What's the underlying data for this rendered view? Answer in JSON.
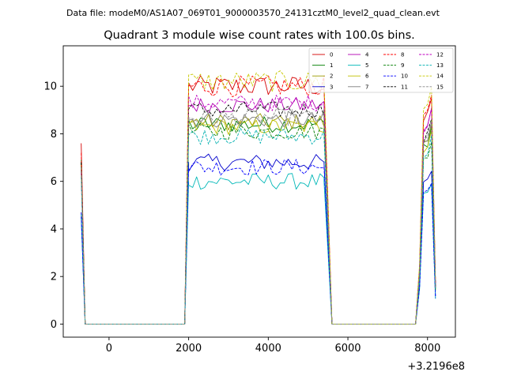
{
  "header_text": "Data file: modeM0/AS1A07_069T01_9000003570_24131cztM0_level2_quad_clean.evt",
  "chart_data": {
    "type": "line",
    "title": "Quadrant 3 module wise count rates with 100.0s bins.",
    "xlabel": "",
    "ylabel": "",
    "x_offset_label": "+3.2196e8",
    "xlim": [
      -1150,
      8700
    ],
    "ylim": [
      -0.55,
      11.7
    ],
    "xticks": [
      0,
      2000,
      4000,
      6000,
      8000
    ],
    "xtick_labels": [
      "0",
      "2000",
      "4000",
      "6000",
      "8000"
    ],
    "yticks": [
      0,
      2,
      4,
      6,
      8,
      10
    ],
    "ytick_labels": [
      "0",
      "2",
      "4",
      "6",
      "8",
      "10"
    ],
    "grid": false,
    "legend_position": "top-right",
    "segments": [
      {
        "x_start": -700,
        "x_end": -600,
        "step": 100,
        "shape": "fall"
      },
      {
        "x_start": -600,
        "x_end": 1800,
        "step": 100,
        "shape": "zero"
      },
      {
        "x_start": 1800,
        "x_end": 1900,
        "step": 100,
        "shape": "zero"
      },
      {
        "x_start": 1900,
        "x_end": 2000,
        "step": 100,
        "shape": "rise"
      },
      {
        "x_start": 2000,
        "x_end": 5400,
        "step": 100,
        "shape": "plateau"
      },
      {
        "x_start": 5400,
        "x_end": 5600,
        "step": 100,
        "shape": "fall"
      },
      {
        "x_start": 5600,
        "x_end": 7600,
        "step": 100,
        "shape": "zero"
      },
      {
        "x_start": 7700,
        "x_end": 8200,
        "step": 100,
        "shape": "spike"
      }
    ],
    "series": [
      {
        "name": "0",
        "color": "#d40000",
        "dash": "solid",
        "level": 10.0,
        "spike": 9.5,
        "start": 7.6
      },
      {
        "name": "1",
        "color": "#007f00",
        "dash": "solid",
        "level": 8.4,
        "spike": 8.3,
        "start": 6.9
      },
      {
        "name": "2",
        "color": "#9a9a00",
        "dash": "solid",
        "level": 8.5,
        "spike": 8.4,
        "start": 6.8
      },
      {
        "name": "3",
        "color": "#0000cc",
        "dash": "solid",
        "level": 6.8,
        "spike": 6.5,
        "start": 4.5
      },
      {
        "name": "4",
        "color": "#b000b0",
        "dash": "solid",
        "level": 9.2,
        "spike": 9.0,
        "start": 6.5
      },
      {
        "name": "5",
        "color": "#00b7b7",
        "dash": "solid",
        "level": 6.0,
        "spike": 5.9,
        "start": 4.6
      },
      {
        "name": "6",
        "color": "#c0c000",
        "dash": "solid",
        "level": 8.3,
        "spike": 8.2,
        "start": 6.7
      },
      {
        "name": "7",
        "color": "#7f7f7f",
        "dash": "solid",
        "level": 8.6,
        "spike": 8.4,
        "start": 6.4
      },
      {
        "name": "8",
        "color": "#ff0000",
        "dash": "dashed",
        "level": 10.0,
        "spike": 9.8,
        "start": 7.2
      },
      {
        "name": "9",
        "color": "#007f00",
        "dash": "dashed",
        "level": 8.1,
        "spike": 7.8,
        "start": 6.6
      },
      {
        "name": "10",
        "color": "#0000ff",
        "dash": "dashed",
        "level": 6.6,
        "spike": 6.1,
        "start": 4.7
      },
      {
        "name": "11",
        "color": "#000000",
        "dash": "dashed",
        "level": 9.0,
        "spike": 8.7,
        "start": 6.8
      },
      {
        "name": "12",
        "color": "#c000c0",
        "dash": "dashed",
        "level": 9.3,
        "spike": 9.1,
        "start": 6.4
      },
      {
        "name": "13",
        "color": "#00b0b0",
        "dash": "dashed",
        "level": 7.9,
        "spike": 7.9,
        "start": 6.2
      },
      {
        "name": "14",
        "color": "#c8c800",
        "dash": "dashed",
        "level": 10.2,
        "spike": 10.0,
        "start": 6.6
      },
      {
        "name": "15",
        "color": "#8a8a8a",
        "dash": "dashed",
        "level": 8.7,
        "spike": 8.5,
        "start": 6.6
      }
    ]
  }
}
